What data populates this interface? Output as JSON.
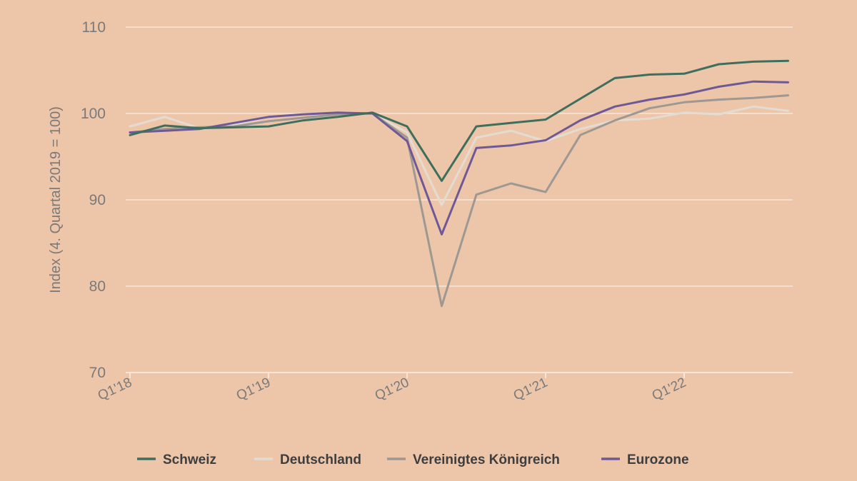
{
  "chart_data": {
    "type": "line",
    "title": "",
    "xlabel": "",
    "ylabel": "Index (4. Quartal 2019 = 100)",
    "ylim": [
      70,
      110
    ],
    "yticks": [
      70,
      80,
      90,
      100,
      110
    ],
    "grid": true,
    "legend_position": "bottom",
    "x": [
      "Q1'18",
      "Q2'18",
      "Q3'18",
      "Q4'18",
      "Q1'19",
      "Q2'19",
      "Q3'19",
      "Q4'19",
      "Q1'20",
      "Q2'20",
      "Q3'20",
      "Q4'20",
      "Q1'21",
      "Q2'21",
      "Q3'21",
      "Q4'21",
      "Q1'22",
      "Q2'22",
      "Q3'22",
      "Q4'22"
    ],
    "xtick_labels": [
      "Q1'18",
      "Q1'19",
      "Q1'20",
      "Q1'21",
      "Q1'22"
    ],
    "series": [
      {
        "name": "Deutschland",
        "color": "#E3DCD2",
        "values": [
          98.5,
          99.6,
          98.3,
          98.7,
          99.6,
          99.9,
          100.1,
          100.0,
          97.8,
          89.4,
          97.2,
          98.0,
          96.8,
          98.2,
          99.2,
          99.4,
          100.1,
          99.9,
          100.8,
          100.3
        ]
      },
      {
        "name": "Vereinigtes Königreich",
        "color": "#9E9893",
        "values": [
          97.8,
          98.2,
          98.4,
          98.5,
          99.1,
          99.5,
          99.9,
          100.0,
          97.2,
          77.7,
          90.6,
          91.9,
          90.9,
          97.5,
          99.2,
          100.6,
          101.3,
          101.6,
          101.8,
          102.1
        ]
      },
      {
        "name": "Eurozone",
        "color": "#6E5896",
        "values": [
          97.8,
          98.0,
          98.2,
          98.9,
          99.6,
          99.9,
          100.1,
          100.0,
          96.8,
          86.0,
          96.0,
          96.3,
          96.9,
          99.2,
          100.8,
          101.6,
          102.2,
          103.1,
          103.7,
          103.6
        ]
      },
      {
        "name": "Schweiz",
        "color": "#3E6E5C",
        "values": [
          97.5,
          98.6,
          98.3,
          98.4,
          98.5,
          99.2,
          99.6,
          100.1,
          98.5,
          92.2,
          98.5,
          98.9,
          99.3,
          101.7,
          104.1,
          104.5,
          104.6,
          105.7,
          106.0,
          106.1
        ]
      }
    ],
    "legend_order": [
      "Schweiz",
      "Deutschland",
      "Vereinigtes Königreich",
      "Eurozone"
    ]
  }
}
